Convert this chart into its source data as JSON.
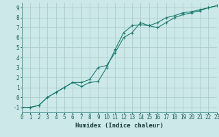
{
  "title": "",
  "xlabel": "Humidex (Indice chaleur)",
  "bg_color": "#cce8e8",
  "grid_color": "#aacccc",
  "line_color": "#1a7a6e",
  "xlim": [
    0,
    23
  ],
  "ylim": [
    -1.5,
    9.5
  ],
  "xticks": [
    0,
    1,
    2,
    3,
    4,
    5,
    6,
    7,
    8,
    9,
    10,
    11,
    12,
    13,
    14,
    15,
    16,
    17,
    18,
    19,
    20,
    21,
    22,
    23
  ],
  "yticks": [
    -1,
    0,
    1,
    2,
    3,
    4,
    5,
    6,
    7,
    8,
    9
  ],
  "line1_x": [
    0,
    1,
    2,
    3,
    4,
    5,
    6,
    7,
    8,
    9,
    10,
    11,
    12,
    13,
    14,
    15,
    16,
    17,
    18,
    19,
    20,
    21,
    22,
    23
  ],
  "line1_y": [
    -1.0,
    -1.0,
    -0.8,
    0.0,
    0.5,
    1.0,
    1.5,
    1.1,
    1.5,
    1.6,
    3.0,
    4.8,
    6.5,
    7.2,
    7.3,
    7.2,
    7.0,
    7.5,
    8.0,
    8.3,
    8.5,
    8.7,
    9.0,
    9.2
  ],
  "line2_x": [
    0,
    1,
    2,
    3,
    4,
    5,
    6,
    7,
    8,
    9,
    10,
    11,
    12,
    13,
    14,
    15,
    16,
    17,
    18,
    19,
    20,
    21,
    22,
    23
  ],
  "line2_y": [
    -1.0,
    -1.0,
    -0.8,
    0.0,
    0.5,
    1.0,
    1.5,
    1.5,
    1.8,
    3.0,
    3.2,
    4.5,
    6.0,
    6.5,
    7.5,
    7.2,
    7.5,
    8.0,
    8.2,
    8.5,
    8.6,
    8.8,
    9.0,
    9.2
  ],
  "tick_fontsize": 5.5,
  "xlabel_fontsize": 6.5
}
